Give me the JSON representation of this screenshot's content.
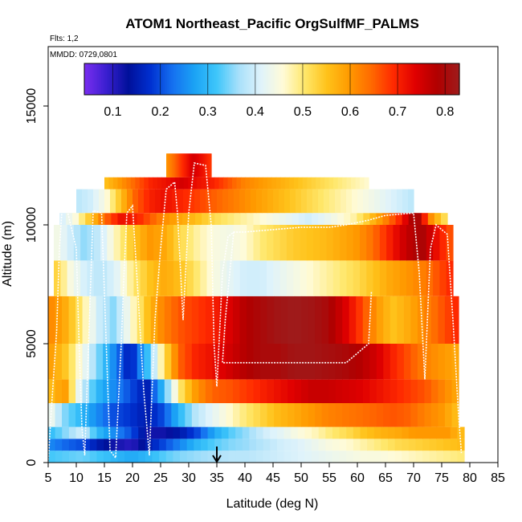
{
  "chart_data": {
    "type": "heatmap",
    "title": "ATOM1 Northeast_Pacific OrgSulfMF_PALMS",
    "subtitle_flights": "Flts: 1,2",
    "subtitle_dates": "MMDD: 0729,0801",
    "xlabel": "Latitude (deg N)",
    "ylabel": "Altitude (m)",
    "xlim": [
      5,
      85
    ],
    "ylim": [
      0,
      17500
    ],
    "x_ticks": [
      "5",
      "10",
      "15",
      "20",
      "25",
      "30",
      "35",
      "40",
      "45",
      "50",
      "55",
      "60",
      "65",
      "70",
      "75",
      "80",
      "85"
    ],
    "y_ticks": [
      "0",
      "5000",
      "10000",
      "15000"
    ],
    "colorbar": {
      "range": [
        0.04,
        0.83
      ],
      "ticks": [
        "0.1",
        "0.2",
        "0.3",
        "0.4",
        "0.5",
        "0.6",
        "0.7",
        "0.8"
      ],
      "colors": [
        "#7a2ef0",
        "#3a1fd0",
        "#00109a",
        "#0030d0",
        "#1570f0",
        "#1ba3f5",
        "#3ec6fa",
        "#a8e0fa",
        "#dff3fb",
        "#fffbd8",
        "#ffe76a",
        "#ffc21a",
        "#ff9a00",
        "#ff6a00",
        "#ff2a00",
        "#e00000",
        "#b00000",
        "#9e1b1b"
      ]
    },
    "marker": {
      "x": 35,
      "label": "arrow"
    },
    "layers": [
      {
        "alt": [
          0,
          500
        ],
        "lat": [
          5,
          79
        ],
        "v": [
          0.32,
          0.33,
          0.34,
          0.32,
          0.3,
          0.28,
          0.3,
          0.33,
          0.35,
          0.36,
          0.37,
          0.38,
          0.38,
          0.39,
          0.4,
          0.41,
          0.42,
          0.43,
          0.44,
          0.45,
          0.45,
          0.46,
          0.47,
          0.48,
          0.49,
          0.5
        ]
      },
      {
        "alt": [
          500,
          1000
        ],
        "lat": [
          5,
          79
        ],
        "v": [
          0.25,
          0.22,
          0.2,
          0.15,
          0.12,
          0.1,
          0.15,
          0.2,
          0.25,
          0.3,
          0.33,
          0.35,
          0.36,
          0.38,
          0.4,
          0.41,
          0.43,
          0.45,
          0.46,
          0.48,
          0.5,
          0.52,
          0.53,
          0.54,
          0.55,
          0.56
        ]
      },
      {
        "alt": [
          1000,
          1500
        ],
        "lat": [
          5,
          79
        ],
        "v": [
          0.3,
          0.35,
          0.4,
          0.3,
          0.25,
          0.2,
          0.12,
          0.12,
          0.15,
          0.2,
          0.28,
          0.33,
          0.36,
          0.4,
          0.42,
          0.45,
          0.47,
          0.5,
          0.52,
          0.55,
          0.57,
          0.58,
          0.6,
          0.6,
          0.6,
          0.55
        ]
      },
      {
        "alt": [
          1500,
          2500
        ],
        "lat": [
          5,
          78
        ],
        "v": [
          0.45,
          0.35,
          0.3,
          0.25,
          0.2,
          0.18,
          0.15,
          0.2,
          0.3,
          0.38,
          0.42,
          0.46,
          0.5,
          0.53,
          0.56,
          0.58,
          0.6,
          0.62,
          0.63,
          0.64,
          0.65,
          0.66,
          0.65,
          0.62,
          0.6,
          0.55
        ]
      },
      {
        "alt": [
          2500,
          3500
        ],
        "lat": [
          5,
          78
        ],
        "v": [
          0.55,
          0.6,
          0.4,
          0.3,
          0.25,
          0.2,
          0.15,
          0.3,
          0.5,
          0.6,
          0.65,
          0.66,
          0.68,
          0.7,
          0.72,
          0.74,
          0.76,
          0.76,
          0.75,
          0.74,
          0.72,
          0.7,
          0.68,
          0.66,
          0.62,
          0.58
        ]
      },
      {
        "alt": [
          3500,
          5000
        ],
        "lat": [
          5,
          78
        ],
        "v": [
          0.6,
          0.55,
          0.45,
          0.35,
          0.25,
          0.15,
          0.3,
          0.5,
          0.65,
          0.7,
          0.72,
          0.75,
          0.78,
          0.8,
          0.8,
          0.82,
          0.82,
          0.81,
          0.8,
          0.78,
          0.75,
          0.7,
          0.66,
          0.62,
          0.6,
          0.58
        ]
      },
      {
        "alt": [
          5000,
          7000
        ],
        "lat": [
          5,
          78
        ],
        "v": [
          0.62,
          0.58,
          0.5,
          0.4,
          0.35,
          0.45,
          0.55,
          0.62,
          0.66,
          0.68,
          0.7,
          0.74,
          0.78,
          0.8,
          0.82,
          0.83,
          0.82,
          0.8,
          0.75,
          0.68,
          0.6,
          0.55,
          0.58,
          0.62,
          0.66,
          0.7
        ]
      },
      {
        "alt": [
          7000,
          8500
        ],
        "lat": [
          6,
          77
        ],
        "v": [
          0.55,
          0.45,
          0.4,
          0.38,
          0.42,
          0.5,
          0.55,
          0.58,
          0.55,
          0.5,
          0.45,
          0.42,
          0.4,
          0.4,
          0.42,
          0.44,
          0.46,
          0.48,
          0.5,
          0.52,
          0.55,
          0.58,
          0.6,
          0.62,
          0.66,
          0.7
        ]
      },
      {
        "alt": [
          8500,
          10000
        ],
        "lat": [
          6,
          77
        ],
        "v": [
          0.45,
          0.4,
          0.35,
          0.4,
          0.48,
          0.55,
          0.6,
          0.58,
          0.52,
          0.48,
          0.45,
          0.44,
          0.46,
          0.5,
          0.52,
          0.54,
          0.55,
          0.56,
          0.58,
          0.6,
          0.64,
          0.7,
          0.76,
          0.8,
          0.72,
          0.65
        ]
      },
      {
        "alt": [
          10000,
          10500
        ],
        "lat": [
          7,
          76
        ],
        "v": [
          0.4,
          0.45,
          0.55,
          0.65,
          0.72,
          0.7,
          0.65,
          0.6,
          0.58,
          0.55,
          0.52,
          0.5,
          0.48,
          0.46,
          0.44,
          0.42,
          0.4,
          0.42,
          0.45,
          0.48,
          0.55,
          0.62,
          0.7,
          0.82,
          0.6,
          0.5
        ]
      },
      {
        "alt": [
          10500,
          11500
        ],
        "lat": [
          10,
          70
        ],
        "v": [
          0.38,
          0.4,
          0.45,
          0.55,
          0.65,
          0.7,
          0.72,
          0.7,
          0.68,
          0.66,
          0.64,
          0.62,
          0.6,
          0.58,
          0.56,
          0.54,
          0.52,
          0.5,
          0.48,
          0.46,
          0.44,
          0.42,
          0.4,
          0.38
        ]
      },
      {
        "alt": [
          11500,
          12000
        ],
        "lat": [
          15,
          62
        ],
        "v": [
          0.55,
          0.6,
          0.65,
          0.7,
          0.72,
          0.75,
          0.72,
          0.7,
          0.66,
          0.62,
          0.6,
          0.58,
          0.56,
          0.54,
          0.52,
          0.5,
          0.48,
          0.46
        ]
      },
      {
        "alt": [
          12000,
          13000
        ],
        "lat": [
          26,
          34
        ],
        "v": [
          0.6,
          0.65,
          0.7,
          0.75,
          0.72,
          0.68
        ]
      }
    ],
    "flight_tracks": [
      {
        "name": "track-1",
        "points": [
          [
            5,
            0
          ],
          [
            5.5,
            2000
          ],
          [
            6.5,
            5500
          ],
          [
            7,
            9000
          ],
          [
            7.5,
            10800
          ],
          [
            8,
            11000
          ],
          [
            10,
            9000
          ],
          [
            10.5,
            5000
          ],
          [
            11,
            1500
          ],
          [
            11.5,
            300
          ],
          [
            13,
            10600
          ],
          [
            14.5,
            10500
          ],
          [
            16,
            500
          ],
          [
            17,
            200
          ],
          [
            18,
            5000
          ],
          [
            18.5,
            8000
          ],
          [
            19,
            10500
          ],
          [
            20,
            10800
          ],
          [
            21,
            7000
          ],
          [
            22,
            3000
          ],
          [
            23,
            300
          ],
          [
            24,
            6000
          ],
          [
            25,
            9000
          ],
          [
            26,
            11500
          ],
          [
            27.5,
            11800
          ],
          [
            28,
            10500
          ],
          [
            29,
            6000
          ],
          [
            30,
            10500
          ],
          [
            31,
            12600
          ],
          [
            33,
            12500
          ],
          [
            34,
            10000
          ],
          [
            34.5,
            5000
          ],
          [
            35,
            3200
          ],
          [
            35.5,
            5500
          ],
          [
            36,
            8000
          ],
          [
            37,
            9500
          ],
          [
            38,
            9700
          ],
          [
            40,
            9700
          ],
          [
            45,
            9800
          ],
          [
            50,
            9900
          ],
          [
            55,
            9900
          ],
          [
            58,
            10000
          ],
          [
            62,
            10200
          ],
          [
            65,
            10400
          ],
          [
            70,
            10500
          ],
          [
            71,
            8000
          ],
          [
            72,
            3500
          ],
          [
            73,
            9000
          ],
          [
            74,
            10000
          ],
          [
            76,
            9600
          ],
          [
            77,
            6000
          ],
          [
            78,
            2000
          ],
          [
            78.5,
            400
          ]
        ]
      },
      {
        "name": "track-2",
        "points": [
          [
            38,
            9700
          ],
          [
            36.5,
            6000
          ],
          [
            36,
            4200
          ],
          [
            40,
            4200
          ],
          [
            46,
            4200
          ],
          [
            52,
            4200
          ],
          [
            58,
            4200
          ],
          [
            62,
            5000
          ],
          [
            62.5,
            7200
          ]
        ]
      }
    ]
  }
}
